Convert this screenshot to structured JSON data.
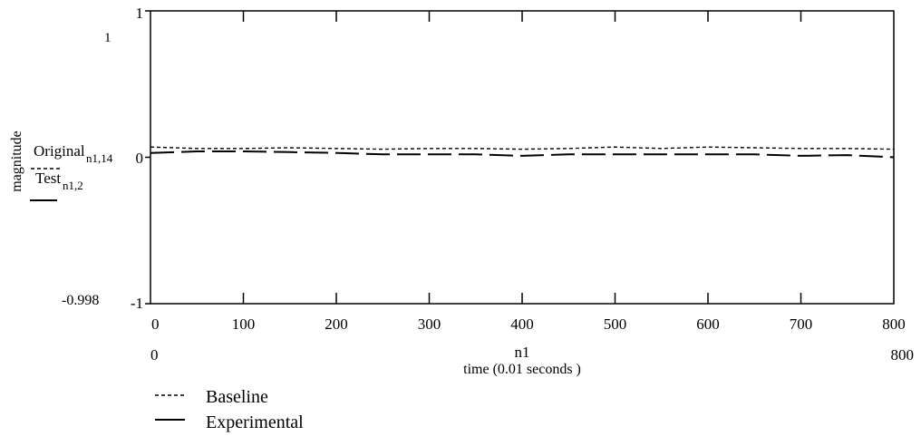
{
  "chart_data": {
    "type": "line",
    "ylabel": "magnitude",
    "xlabel_var": "n1",
    "xlabel": "time (0.01 seconds )",
    "xlim": [
      0,
      800
    ],
    "ylim": [
      -1,
      1
    ],
    "x_ticks": [
      "0",
      "100",
      "200",
      "300",
      "400",
      "500",
      "600",
      "700",
      "800"
    ],
    "y_ticks": [
      "1",
      "0",
      "-1"
    ],
    "y_top_marker": "1",
    "y_bottom_marker": "-0.998",
    "x_range_left": "0",
    "x_range_right": "800",
    "grid": false,
    "series": [
      {
        "name": "Original",
        "subscript": "n1,14",
        "style": "dashed-fine",
        "x": [
          0,
          50,
          100,
          150,
          200,
          250,
          300,
          350,
          400,
          450,
          500,
          550,
          600,
          650,
          700,
          750,
          800
        ],
        "values": [
          0.07,
          0.06,
          0.06,
          0.065,
          0.06,
          0.055,
          0.06,
          0.06,
          0.055,
          0.06,
          0.07,
          0.06,
          0.07,
          0.065,
          0.06,
          0.06,
          0.055
        ]
      },
      {
        "name": "Test",
        "subscript": "n1,2",
        "style": "long-dash",
        "x": [
          0,
          50,
          100,
          150,
          200,
          250,
          300,
          350,
          400,
          450,
          500,
          550,
          600,
          650,
          700,
          750,
          800
        ],
        "values": [
          0.03,
          0.04,
          0.04,
          0.035,
          0.03,
          0.02,
          0.02,
          0.02,
          0.01,
          0.02,
          0.02,
          0.02,
          0.02,
          0.02,
          0.01,
          0.015,
          0.0
        ]
      }
    ],
    "legend": {
      "position": "bottom-left",
      "entries": [
        "Baseline",
        "Experimental"
      ]
    }
  }
}
